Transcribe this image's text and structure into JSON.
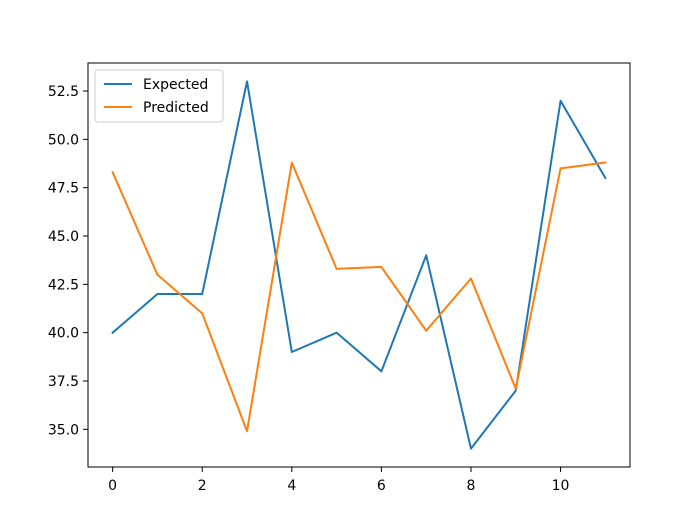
{
  "chart_data": {
    "type": "line",
    "title": "",
    "xlabel": "",
    "ylabel": "",
    "x": [
      0,
      1,
      2,
      3,
      4,
      5,
      6,
      7,
      8,
      9,
      10,
      11
    ],
    "xlim": [
      -0.55,
      11.55
    ],
    "ylim": [
      33.05,
      53.95
    ],
    "x_ticks": [
      0,
      2,
      4,
      6,
      8,
      10
    ],
    "x_tick_labels": [
      "0",
      "2",
      "4",
      "6",
      "8",
      "10"
    ],
    "y_ticks": [
      35.0,
      37.5,
      40.0,
      42.5,
      45.0,
      47.5,
      50.0,
      52.5
    ],
    "y_tick_labels": [
      "35.0",
      "37.5",
      "40.0",
      "42.5",
      "45.0",
      "47.5",
      "50.0",
      "52.5"
    ],
    "grid": false,
    "legend_position": "top-left",
    "series": [
      {
        "name": "Expected",
        "color": "#1f77b4",
        "values": [
          40,
          42,
          42,
          53,
          39,
          40,
          38,
          44,
          34,
          37,
          52,
          48
        ]
      },
      {
        "name": "Predicted",
        "color": "#ff7f0e",
        "values": [
          48.3,
          43.0,
          41.0,
          34.9,
          48.8,
          43.3,
          43.4,
          40.1,
          42.8,
          37.1,
          48.5,
          48.8
        ]
      }
    ]
  }
}
